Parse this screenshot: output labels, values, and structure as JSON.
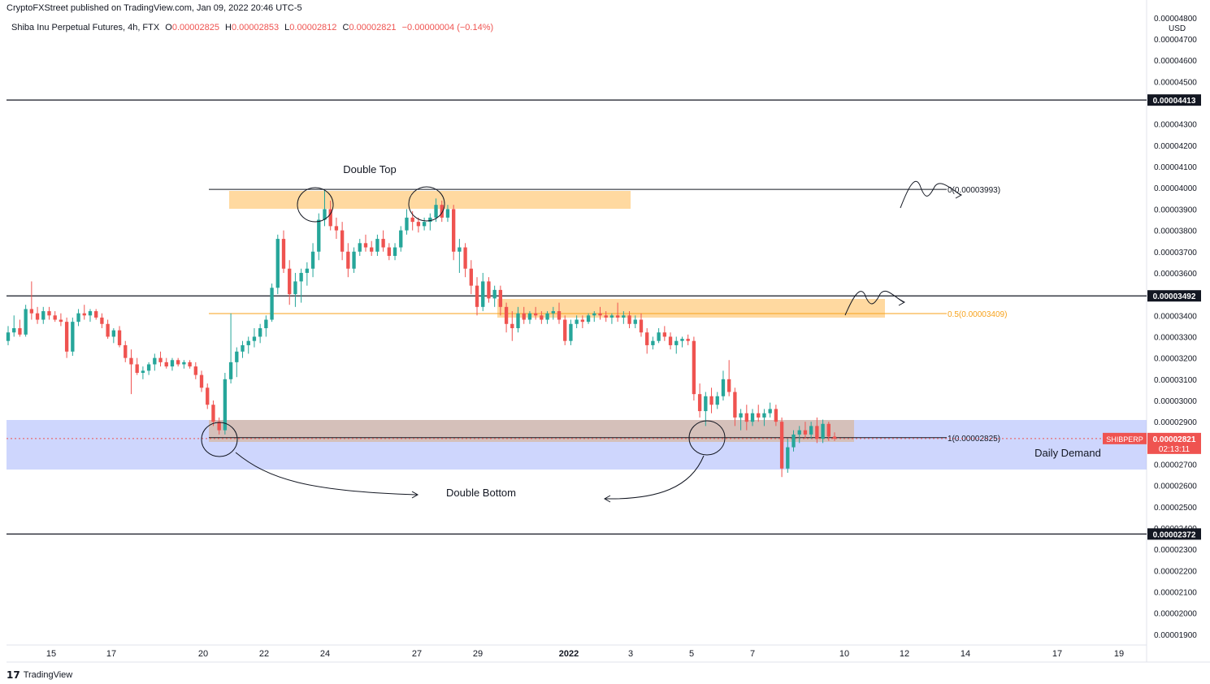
{
  "header": {
    "publisher": "CryptoFXStreet published on TradingView.com, Jan 09, 2022 20:46 UTC-5"
  },
  "legend": {
    "symbol": "Shiba Inu Perpetual Futures, 4h, FTX",
    "open_label": "O",
    "open": "0.00002825",
    "high_label": "H",
    "high": "0.00002853",
    "low_label": "L",
    "low": "0.00002812",
    "close_label": "C",
    "close": "0.00002821",
    "change": "−0.00000004 (−0.14%)"
  },
  "footer": {
    "brand": "TradingView",
    "icon": "tradingview-logo-icon"
  },
  "colors": {
    "up": "#26a69a",
    "down": "#ef5350",
    "orange": "#ffcc80",
    "blue": "#a5b4fc",
    "fib_orange": "#f7a21b"
  },
  "chart_data": {
    "type": "candlestick",
    "currency": "USD",
    "y_ticks": [
      "0.00004800",
      "0.00004700",
      "0.00004600",
      "0.00004500",
      "0.00004300",
      "0.00004200",
      "0.00004100",
      "0.00004000",
      "0.00003900",
      "0.00003800",
      "0.00003700",
      "0.00003600",
      "0.00003400",
      "0.00003300",
      "0.00003200",
      "0.00003100",
      "0.00003000",
      "0.00002900",
      "0.00002700",
      "0.00002600",
      "0.00002500",
      "0.00002400",
      "0.00002300",
      "0.00002200",
      "0.00002100",
      "0.00002000",
      "0.00001900"
    ],
    "x_ticks": [
      "15",
      "17",
      "20",
      "22",
      "24",
      "27",
      "29",
      "2022",
      "3",
      "5",
      "7",
      "10",
      "12",
      "14",
      "17",
      "19"
    ],
    "ylim": [
      1.85e-05,
      4.83e-05
    ],
    "price_lines": [
      {
        "value": 4.413e-05,
        "label": "0.00004413"
      },
      {
        "value": 3.492e-05,
        "label": "0.00003492"
      },
      {
        "value": 2.372e-05,
        "label": "0.00002372"
      }
    ],
    "current": {
      "symbol": "SHIBPERP",
      "price": "0.00002821",
      "countdown": "02:13:11"
    },
    "fib_levels": [
      {
        "label": "0(0.00003993)",
        "value": 3.993e-05
      },
      {
        "label": "0.5(0.00003409)",
        "value": 3.409e-05
      },
      {
        "label": "1(0.00002825)",
        "value": 2.825e-05
      }
    ],
    "annotations": {
      "double_top": "Double Top",
      "double_bottom": "Double Bottom",
      "daily_demand": "Daily Demand"
    },
    "candles": [
      [
        3.28,
        3.35,
        3.26,
        3.32
      ],
      [
        3.32,
        3.4,
        3.3,
        3.34
      ],
      [
        3.34,
        3.38,
        3.3,
        3.31
      ],
      [
        3.31,
        3.45,
        3.3,
        3.43
      ],
      [
        3.43,
        3.56,
        3.38,
        3.41
      ],
      [
        3.41,
        3.44,
        3.36,
        3.38
      ],
      [
        3.38,
        3.44,
        3.36,
        3.42
      ],
      [
        3.42,
        3.44,
        3.38,
        3.4
      ],
      [
        3.4,
        3.42,
        3.37,
        3.38
      ],
      [
        3.38,
        3.41,
        3.35,
        3.37
      ],
      [
        3.37,
        3.39,
        3.2,
        3.23
      ],
      [
        3.23,
        3.39,
        3.21,
        3.37
      ],
      [
        3.37,
        3.43,
        3.35,
        3.41
      ],
      [
        3.41,
        3.45,
        3.38,
        3.4
      ],
      [
        3.4,
        3.43,
        3.37,
        3.42
      ],
      [
        3.42,
        3.43,
        3.38,
        3.39
      ],
      [
        3.39,
        3.41,
        3.34,
        3.36
      ],
      [
        3.36,
        3.38,
        3.29,
        3.3
      ],
      [
        3.3,
        3.34,
        3.27,
        3.33
      ],
      [
        3.33,
        3.35,
        3.25,
        3.26
      ],
      [
        3.26,
        3.28,
        3.18,
        3.2
      ],
      [
        3.2,
        3.24,
        3.03,
        3.17
      ],
      [
        3.17,
        3.2,
        3.12,
        3.13
      ],
      [
        3.13,
        3.16,
        3.1,
        3.14
      ],
      [
        3.14,
        3.18,
        3.12,
        3.17
      ],
      [
        3.17,
        3.22,
        3.14,
        3.2
      ],
      [
        3.2,
        3.23,
        3.16,
        3.18
      ],
      [
        3.18,
        3.2,
        3.15,
        3.16
      ],
      [
        3.16,
        3.2,
        3.14,
        3.19
      ],
      [
        3.19,
        3.2,
        3.16,
        3.17
      ],
      [
        3.17,
        3.19,
        3.15,
        3.18
      ],
      [
        3.18,
        3.19,
        3.15,
        3.16
      ],
      [
        3.16,
        3.18,
        3.1,
        3.12
      ],
      [
        3.12,
        3.14,
        3.04,
        3.06
      ],
      [
        3.06,
        3.08,
        2.96,
        2.98
      ],
      [
        2.98,
        3.0,
        2.88,
        2.9
      ],
      [
        2.9,
        2.92,
        2.84,
        2.86
      ],
      [
        2.86,
        3.13,
        2.84,
        3.1
      ],
      [
        3.1,
        3.41,
        3.08,
        3.18
      ],
      [
        3.18,
        3.25,
        3.11,
        3.23
      ],
      [
        3.23,
        3.28,
        3.2,
        3.26
      ],
      [
        3.26,
        3.3,
        3.22,
        3.28
      ],
      [
        3.28,
        3.34,
        3.25,
        3.3
      ],
      [
        3.3,
        3.36,
        3.27,
        3.34
      ],
      [
        3.34,
        3.4,
        3.3,
        3.38
      ],
      [
        3.38,
        3.55,
        3.37,
        3.53
      ],
      [
        3.53,
        3.78,
        3.5,
        3.76
      ],
      [
        3.76,
        3.8,
        3.6,
        3.62
      ],
      [
        3.62,
        3.66,
        3.45,
        3.5
      ],
      [
        3.5,
        3.6,
        3.44,
        3.56
      ],
      [
        3.56,
        3.62,
        3.46,
        3.6
      ],
      [
        3.6,
        3.65,
        3.54,
        3.62
      ],
      [
        3.62,
        3.74,
        3.58,
        3.7
      ],
      [
        3.7,
        3.88,
        3.66,
        3.85
      ],
      [
        3.85,
        3.99,
        3.82,
        3.9
      ],
      [
        3.9,
        3.94,
        3.8,
        3.82
      ],
      [
        3.82,
        3.86,
        3.76,
        3.8
      ],
      [
        3.8,
        3.84,
        3.66,
        3.7
      ],
      [
        3.7,
        3.74,
        3.58,
        3.62
      ],
      [
        3.62,
        3.72,
        3.6,
        3.7
      ],
      [
        3.7,
        3.76,
        3.68,
        3.74
      ],
      [
        3.74,
        3.78,
        3.7,
        3.72
      ],
      [
        3.72,
        3.75,
        3.68,
        3.7
      ],
      [
        3.7,
        3.78,
        3.68,
        3.76
      ],
      [
        3.76,
        3.8,
        3.7,
        3.72
      ],
      [
        3.72,
        3.74,
        3.66,
        3.68
      ],
      [
        3.68,
        3.74,
        3.66,
        3.72
      ],
      [
        3.72,
        3.82,
        3.7,
        3.8
      ],
      [
        3.8,
        3.9,
        3.78,
        3.86
      ],
      [
        3.86,
        3.89,
        3.8,
        3.84
      ],
      [
        3.84,
        3.86,
        3.79,
        3.82
      ],
      [
        3.82,
        3.86,
        3.8,
        3.84
      ],
      [
        3.84,
        3.88,
        3.8,
        3.86
      ],
      [
        3.86,
        3.95,
        3.84,
        3.92
      ],
      [
        3.92,
        3.94,
        3.84,
        3.86
      ],
      [
        3.86,
        3.92,
        3.84,
        3.9
      ],
      [
        3.9,
        3.92,
        3.66,
        3.7
      ],
      [
        3.7,
        3.76,
        3.6,
        3.72
      ],
      [
        3.72,
        3.74,
        3.58,
        3.62
      ],
      [
        3.62,
        3.66,
        3.5,
        3.54
      ],
      [
        3.54,
        3.58,
        3.4,
        3.44
      ],
      [
        3.44,
        3.6,
        3.42,
        3.56
      ],
      [
        3.56,
        3.58,
        3.46,
        3.48
      ],
      [
        3.48,
        3.54,
        3.44,
        3.52
      ],
      [
        3.52,
        3.54,
        3.4,
        3.44
      ],
      [
        3.44,
        3.46,
        3.32,
        3.36
      ],
      [
        3.36,
        3.42,
        3.28,
        3.34
      ],
      [
        3.34,
        3.44,
        3.32,
        3.41
      ],
      [
        3.41,
        3.44,
        3.36,
        3.38
      ],
      [
        3.38,
        3.42,
        3.36,
        3.41
      ],
      [
        3.41,
        3.44,
        3.38,
        3.4
      ],
      [
        3.4,
        3.42,
        3.36,
        3.38
      ],
      [
        3.38,
        3.42,
        3.36,
        3.41
      ],
      [
        3.41,
        3.44,
        3.38,
        3.42
      ],
      [
        3.42,
        3.46,
        3.36,
        3.38
      ],
      [
        3.38,
        3.4,
        3.26,
        3.28
      ],
      [
        3.28,
        3.38,
        3.26,
        3.36
      ],
      [
        3.36,
        3.4,
        3.34,
        3.38
      ],
      [
        3.38,
        3.4,
        3.34,
        3.37
      ],
      [
        3.37,
        3.41,
        3.36,
        3.4
      ],
      [
        3.4,
        3.42,
        3.37,
        3.41
      ],
      [
        3.41,
        3.44,
        3.38,
        3.4
      ],
      [
        3.4,
        3.42,
        3.37,
        3.39
      ],
      [
        3.39,
        3.41,
        3.36,
        3.4
      ],
      [
        3.4,
        3.46,
        3.37,
        3.39
      ],
      [
        3.39,
        3.42,
        3.36,
        3.4
      ],
      [
        3.4,
        3.42,
        3.34,
        3.36
      ],
      [
        3.36,
        3.4,
        3.34,
        3.38
      ],
      [
        3.38,
        3.41,
        3.3,
        3.32
      ],
      [
        3.32,
        3.34,
        3.22,
        3.26
      ],
      [
        3.26,
        3.3,
        3.24,
        3.28
      ],
      [
        3.28,
        3.34,
        3.27,
        3.32
      ],
      [
        3.32,
        3.35,
        3.28,
        3.3
      ],
      [
        3.3,
        3.32,
        3.24,
        3.26
      ],
      [
        3.26,
        3.3,
        3.22,
        3.28
      ],
      [
        3.28,
        3.3,
        3.25,
        3.29
      ],
      [
        3.29,
        3.31,
        3.26,
        3.28
      ],
      [
        3.28,
        3.3,
        3.0,
        3.03
      ],
      [
        3.03,
        3.08,
        2.92,
        2.95
      ],
      [
        2.95,
        3.04,
        2.88,
        3.02
      ],
      [
        3.02,
        3.06,
        2.94,
        2.98
      ],
      [
        2.98,
        3.04,
        2.96,
        3.02
      ],
      [
        3.02,
        3.14,
        3.0,
        3.1
      ],
      [
        3.1,
        3.19,
        3.02,
        3.04
      ],
      [
        3.04,
        3.06,
        2.88,
        2.92
      ],
      [
        2.92,
        2.96,
        2.86,
        2.94
      ],
      [
        2.94,
        2.98,
        2.86,
        2.9
      ],
      [
        2.9,
        2.96,
        2.88,
        2.94
      ],
      [
        2.94,
        2.98,
        2.9,
        2.92
      ],
      [
        2.92,
        2.96,
        2.88,
        2.94
      ],
      [
        2.94,
        2.99,
        2.92,
        2.96
      ],
      [
        2.96,
        2.98,
        2.88,
        2.9
      ],
      [
        2.9,
        2.92,
        2.64,
        2.68
      ],
      [
        2.68,
        2.82,
        2.66,
        2.78
      ],
      [
        2.78,
        2.86,
        2.76,
        2.84
      ],
      [
        2.84,
        2.88,
        2.8,
        2.86
      ],
      [
        2.86,
        2.9,
        2.82,
        2.84
      ],
      [
        2.84,
        2.9,
        2.82,
        2.88
      ],
      [
        2.88,
        2.92,
        2.8,
        2.82
      ],
      [
        2.82,
        2.91,
        2.8,
        2.89
      ],
      [
        2.89,
        2.9,
        2.81,
        2.83
      ],
      [
        2.83,
        2.85,
        2.81,
        2.821
      ]
    ]
  }
}
